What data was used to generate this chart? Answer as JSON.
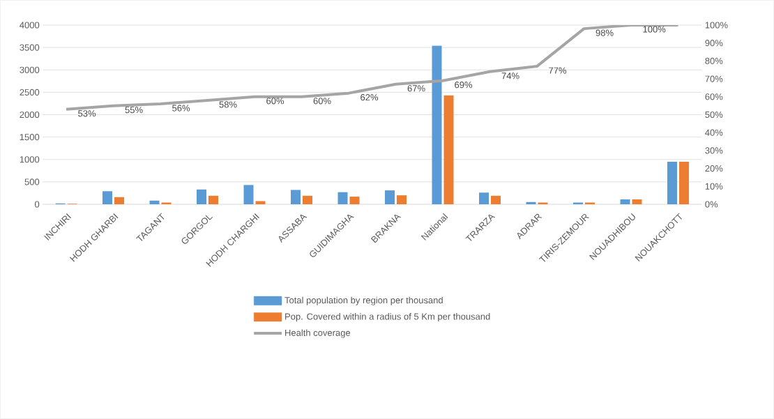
{
  "chart_data": {
    "type": "bar",
    "categories": [
      "INCHIRI",
      "HODH  GHARBI",
      "TAGANT",
      "GORGOL",
      "HODH CHARGHI",
      "ASSABA",
      "GUIDIMAGHA",
      "BRAKNA",
      "National",
      "TRARZA",
      "ADRAR",
      "TIRIS-ZEMOUR",
      "NOUADHIBOU",
      "NOUAKCHOTT"
    ],
    "series": [
      {
        "name": "Total population by region per thousand",
        "color": "#5b9bd5",
        "values": [
          20,
          290,
          80,
          330,
          430,
          320,
          270,
          310,
          3540,
          260,
          50,
          40,
          110,
          950
        ]
      },
      {
        "name": "Pop. Covered within a radius of 5 Km per thousand",
        "color": "#ed7d31",
        "values": [
          10,
          160,
          40,
          190,
          70,
          190,
          170,
          200,
          2430,
          190,
          40,
          40,
          110,
          950
        ]
      },
      {
        "name": "Health coverage",
        "type": "line",
        "axis": "y2",
        "color": "#a5a5a5",
        "values": [
          53,
          55,
          56,
          58,
          60,
          60,
          62,
          67,
          69,
          74,
          77,
          98,
          100,
          100
        ],
        "value_labels": [
          "53%",
          "55%",
          "56%",
          "58%",
          "60%",
          "60%",
          "62%",
          "67%",
          "69%",
          "74%",
          "77%",
          "98%",
          "100%",
          null
        ]
      }
    ],
    "ylim": [
      0,
      4000
    ],
    "yticks": [
      0,
      500,
      1000,
      1500,
      2000,
      2500,
      3000,
      3500,
      4000
    ],
    "y2lim": [
      0,
      100
    ],
    "y2ticks": [
      {
        "value": 0,
        "label": "0%"
      },
      {
        "value": 10,
        "label": "10%"
      },
      {
        "value": 20,
        "label": "20%"
      },
      {
        "value": 30,
        "label": "30%"
      },
      {
        "value": 40,
        "label": "40%"
      },
      {
        "value": 50,
        "label": "50%"
      },
      {
        "value": 60,
        "label": "60%"
      },
      {
        "value": 70,
        "label": "70%"
      },
      {
        "value": 80,
        "label": "80%"
      },
      {
        "value": 90,
        "label": "90%"
      },
      {
        "value": 100,
        "label": "100%"
      }
    ],
    "grid": "y",
    "legend": "bottom"
  }
}
